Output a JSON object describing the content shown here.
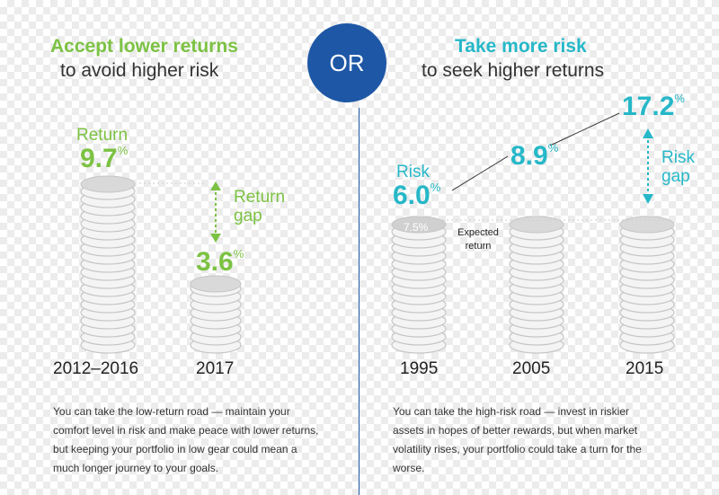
{
  "divider_label": "OR",
  "left": {
    "heading": "Accept lower returns",
    "subheading": "to avoid higher risk",
    "return_label": "Return",
    "return_value": "9.7",
    "gap_label_line1": "Return",
    "gap_label_line2": "gap",
    "low_value": "3.6",
    "pct": "%",
    "year_a": "2012–2016",
    "year_b": "2017",
    "caption": "You can take the low-return road — maintain your comfort level in risk and make peace with lower returns, but keeping your portfolio in low gear could mean a much longer journey to your goals."
  },
  "right": {
    "heading": "Take more risk",
    "subheading": "to seek higher returns",
    "risk_label": "Risk",
    "risk_1995": "6.0",
    "risk_2005": "8.9",
    "risk_2015": "17.2",
    "gap_label_line1": "Risk",
    "gap_label_line2": "gap",
    "expected_badge": "7.5%",
    "expected_label_line1": "Expected",
    "expected_label_line2": "return",
    "pct": "%",
    "year_a": "1995",
    "year_b": "2005",
    "year_c": "2015",
    "caption": "You can take the high-risk road — invest in riskier assets in hopes of better rewards, but when market volatility rises, your portfolio could take a turn for the worse."
  },
  "colors": {
    "green": "#7cc243",
    "teal": "#26b8c8",
    "blue": "#1e57a6",
    "coin": "#c8c8c8"
  }
}
